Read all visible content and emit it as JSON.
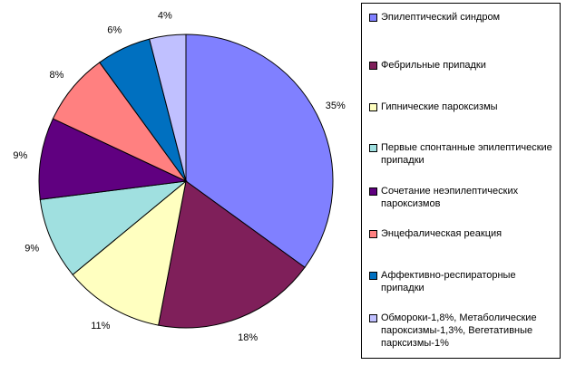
{
  "chart_data": {
    "type": "pie",
    "categories": [
      "Эпилептический синдром",
      "Фебрильные припадки",
      "Гипнические пароксизмы",
      "Первые спонтанные эпилептические припадки",
      "Сочетание неэпилептических пароксизмов",
      "Энцефалическая реакция",
      "Аффективно-респираторные припадки",
      "Обмороки-1,8%, Метаболические пароксизмы-1,3%, Вегетативные парксизмы-1%"
    ],
    "values": [
      35,
      18,
      11,
      9,
      9,
      8,
      6,
      4
    ],
    "labels": [
      "35%",
      "18%",
      "11%",
      "9%",
      "9%",
      "8%",
      "6%",
      "4%"
    ],
    "colors": [
      "#8080ff",
      "#7f1f5a",
      "#ffffc0",
      "#a0e0e0",
      "#600080",
      "#ff8080",
      "#0070c0",
      "#c0c0ff"
    ],
    "legend_position": "right",
    "start_angle": "12 o'clock",
    "direction": "clockwise"
  }
}
